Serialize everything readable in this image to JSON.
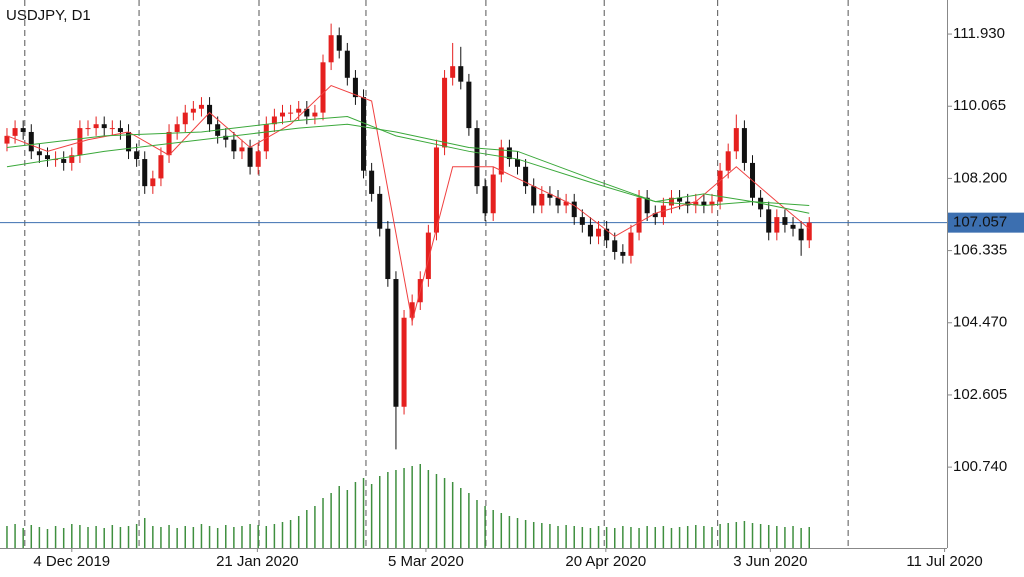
{
  "chart_data": {
    "type": "candlestick",
    "title": "USDJPY, D1",
    "x": [
      0,
      1,
      2,
      3,
      4,
      5,
      6,
      7,
      8,
      9,
      10,
      11,
      12,
      13,
      14,
      15,
      16,
      17,
      18,
      19,
      20,
      21,
      22,
      23,
      24,
      25,
      26,
      27,
      28,
      29,
      30,
      31,
      32,
      33,
      34,
      35,
      36,
      37,
      38,
      39,
      40,
      41,
      42,
      43,
      44,
      45,
      46,
      47,
      48,
      49,
      50,
      51,
      52,
      53,
      54,
      55,
      56,
      57,
      58,
      59,
      60,
      61,
      62,
      63,
      64,
      65,
      66,
      67,
      68,
      69,
      70,
      71,
      72,
      73,
      74,
      75,
      76,
      77,
      78,
      79,
      80,
      81,
      82,
      83,
      84,
      85,
      86,
      87,
      88,
      89,
      90,
      91,
      92,
      93,
      94,
      95,
      96,
      97,
      98,
      99
    ],
    "open": [
      109.1,
      109.3,
      109.5,
      109.4,
      108.9,
      108.8,
      108.7,
      108.7,
      108.6,
      108.8,
      109.5,
      109.5,
      109.6,
      109.5,
      109.5,
      109.4,
      108.9,
      108.7,
      108.0,
      108.2,
      108.8,
      109.4,
      109.6,
      109.9,
      110.0,
      110.1,
      109.6,
      109.3,
      109.2,
      108.9,
      109.0,
      108.5,
      108.9,
      109.6,
      109.8,
      109.9,
      109.9,
      110.0,
      109.8,
      109.9,
      111.2,
      111.9,
      111.5,
      110.8,
      110.3,
      108.4,
      107.8,
      106.9,
      105.6,
      102.3,
      104.6,
      105.0,
      105.6,
      106.8,
      109.0,
      110.8,
      111.1,
      110.7,
      109.5,
      108.0,
      107.3,
      108.3,
      109.0,
      108.7,
      108.5,
      108.0,
      107.5,
      107.8,
      107.7,
      107.5,
      107.6,
      107.2,
      107.0,
      106.7,
      106.9,
      106.6,
      106.3,
      106.2,
      106.8,
      107.7,
      107.3,
      107.2,
      107.5,
      107.7,
      107.6,
      107.5,
      107.6,
      107.5,
      107.6,
      108.4,
      108.9,
      109.5,
      108.6,
      107.7,
      107.4,
      106.8,
      107.2,
      107.0,
      106.9,
      106.6
    ],
    "high": [
      109.5,
      109.7,
      109.7,
      109.6,
      109.1,
      109.0,
      108.9,
      108.9,
      109.0,
      109.7,
      109.7,
      109.8,
      109.8,
      109.7,
      109.7,
      109.6,
      109.1,
      108.9,
      108.4,
      109.0,
      109.6,
      109.8,
      110.1,
      110.2,
      110.3,
      110.3,
      109.8,
      109.5,
      109.4,
      109.2,
      109.2,
      109.1,
      109.8,
      110.0,
      110.1,
      110.1,
      110.2,
      110.2,
      110.1,
      111.4,
      112.2,
      112.1,
      111.7,
      111.0,
      110.5,
      108.6,
      108.0,
      107.1,
      105.8,
      104.8,
      105.2,
      105.8,
      107.0,
      109.2,
      111.0,
      111.7,
      111.6,
      110.9,
      109.7,
      108.2,
      108.5,
      109.2,
      109.2,
      108.9,
      108.7,
      108.2,
      108.0,
      108.0,
      107.9,
      107.8,
      107.8,
      107.4,
      107.2,
      107.1,
      107.1,
      106.8,
      106.5,
      107.0,
      107.9,
      107.9,
      107.5,
      107.7,
      107.9,
      107.9,
      107.8,
      107.8,
      107.8,
      107.8,
      108.6,
      109.1,
      109.85,
      109.7,
      108.8,
      107.9,
      107.6,
      107.4,
      107.4,
      107.2,
      107.1,
      107.2
    ],
    "low": [
      108.9,
      109.1,
      109.2,
      108.7,
      108.6,
      108.5,
      108.5,
      108.4,
      108.4,
      108.6,
      109.3,
      109.3,
      109.3,
      109.3,
      109.2,
      108.7,
      108.5,
      107.8,
      107.8,
      108.0,
      108.6,
      109.2,
      109.4,
      109.7,
      109.8,
      109.4,
      109.1,
      109.0,
      108.7,
      108.7,
      108.3,
      108.3,
      108.7,
      109.4,
      109.6,
      109.7,
      109.7,
      109.6,
      109.6,
      109.7,
      111.0,
      111.3,
      110.6,
      110.1,
      108.2,
      107.6,
      106.7,
      105.4,
      101.2,
      102.1,
      104.4,
      104.8,
      105.4,
      106.6,
      108.8,
      110.6,
      110.5,
      109.3,
      107.8,
      107.1,
      107.1,
      108.1,
      108.5,
      108.3,
      107.8,
      107.3,
      107.3,
      107.5,
      107.3,
      107.3,
      107.0,
      106.8,
      106.5,
      106.5,
      106.4,
      106.1,
      106.0,
      106.0,
      106.6,
      107.1,
      107.0,
      107.0,
      107.3,
      107.4,
      107.3,
      107.3,
      107.3,
      107.3,
      107.4,
      108.2,
      108.7,
      108.4,
      107.5,
      107.2,
      106.6,
      106.6,
      106.8,
      106.7,
      106.2,
      106.4
    ],
    "close": [
      109.3,
      109.5,
      109.4,
      108.9,
      108.8,
      108.7,
      108.7,
      108.6,
      108.8,
      109.5,
      109.5,
      109.6,
      109.5,
      109.5,
      109.4,
      108.9,
      108.7,
      108.0,
      108.2,
      108.8,
      109.4,
      109.6,
      109.9,
      110.0,
      110.1,
      109.6,
      109.3,
      109.2,
      108.9,
      109.0,
      108.5,
      108.9,
      109.6,
      109.8,
      109.9,
      109.9,
      110.0,
      109.8,
      109.9,
      111.2,
      111.9,
      111.5,
      110.8,
      110.3,
      108.4,
      107.8,
      106.9,
      105.6,
      102.3,
      104.6,
      105.0,
      105.6,
      106.8,
      109.0,
      110.8,
      111.1,
      110.7,
      109.5,
      108.0,
      107.3,
      108.3,
      109.0,
      108.7,
      108.5,
      108.0,
      107.5,
      107.8,
      107.7,
      107.5,
      107.6,
      107.2,
      107.0,
      106.7,
      106.9,
      106.6,
      106.3,
      106.2,
      106.8,
      107.7,
      107.3,
      107.2,
      107.5,
      107.7,
      107.6,
      107.5,
      107.6,
      107.5,
      107.6,
      108.4,
      108.9,
      109.5,
      108.6,
      107.7,
      107.4,
      106.8,
      107.2,
      107.0,
      106.9,
      106.6,
      107.057
    ],
    "volume": [
      22,
      24,
      20,
      23,
      21,
      19,
      22,
      20,
      24,
      23,
      21,
      22,
      20,
      23,
      21,
      22,
      24,
      30,
      22,
      21,
      23,
      20,
      22,
      21,
      24,
      22,
      20,
      23,
      21,
      22,
      24,
      23,
      22,
      24,
      26,
      28,
      32,
      38,
      42,
      50,
      55,
      62,
      58,
      66,
      70,
      64,
      72,
      76,
      78,
      80,
      82,
      84,
      78,
      74,
      70,
      66,
      60,
      55,
      48,
      42,
      38,
      35,
      32,
      30,
      28,
      26,
      25,
      24,
      22,
      23,
      22,
      21,
      20,
      22,
      21,
      20,
      22,
      21,
      20,
      22,
      21,
      22,
      20,
      21,
      22,
      23,
      22,
      21,
      24,
      25,
      26,
      27,
      25,
      24,
      23,
      22,
      21,
      22,
      20,
      21
    ],
    "up_color": "#e5201f",
    "down_color": "#111111",
    "lines": [
      {
        "color": "#f04040",
        "x": [
          0,
          5,
          10,
          15,
          20,
          25,
          30,
          35,
          40,
          45,
          50,
          55,
          60,
          65,
          70,
          75,
          80,
          85,
          90,
          95,
          99
        ],
        "values": [
          109.3,
          108.9,
          109.2,
          109.4,
          108.8,
          109.9,
          109.0,
          109.6,
          110.6,
          110.2,
          104.5,
          108.5,
          108.5,
          108.0,
          107.5,
          106.7,
          107.3,
          107.6,
          108.5,
          107.6,
          106.9
        ]
      },
      {
        "color": "#3aa83a",
        "x": [
          0,
          12,
          24,
          36,
          42,
          48,
          57,
          63,
          72,
          80,
          86,
          92,
          99
        ],
        "values": [
          109.0,
          109.3,
          109.4,
          109.7,
          109.8,
          109.3,
          108.9,
          108.7,
          108.1,
          107.6,
          107.8,
          107.6,
          107.3
        ]
      },
      {
        "color": "#3aa83a",
        "x": [
          0,
          12,
          24,
          36,
          42,
          48,
          57,
          63,
          72,
          80,
          86,
          92,
          99
        ],
        "values": [
          108.5,
          108.9,
          109.2,
          109.5,
          109.6,
          109.4,
          109.0,
          108.9,
          108.2,
          107.6,
          107.5,
          107.6,
          107.5
        ]
      }
    ],
    "volume_color": "#3f8f3f",
    "xlim": [
      -0.86,
      116
    ],
    "xticks": [
      {
        "value": 8,
        "label": "4 Dec 2019"
      },
      {
        "value": 30.9,
        "label": "21 Jan 2020"
      },
      {
        "value": 51.7,
        "label": "5 Mar 2020"
      },
      {
        "value": 73.9,
        "label": "20 Apr 2020"
      },
      {
        "value": 94.2,
        "label": "3 Jun 2020"
      },
      {
        "value": 115.7,
        "label": "11 Jul 2020"
      }
    ],
    "xgrid": [
      2.2,
      16.3,
      31.1,
      44.3,
      59.1,
      73.7,
      87.7,
      103.8
    ],
    "ylim": [
      98.65,
      112.81
    ],
    "yticks": [
      {
        "value": 111.93,
        "label": "111.930"
      },
      {
        "value": 110.065,
        "label": "110.065"
      },
      {
        "value": 108.2,
        "label": "108.200"
      },
      {
        "value": 106.335,
        "label": "106.335"
      },
      {
        "value": 104.47,
        "label": "104.470"
      },
      {
        "value": 102.605,
        "label": "102.605"
      },
      {
        "value": 100.74,
        "label": "100.740"
      }
    ],
    "vlim": [
      0,
      100
    ],
    "current_price": {
      "value": 107.057,
      "label": "107.057",
      "color": "#3c6fb0"
    }
  }
}
